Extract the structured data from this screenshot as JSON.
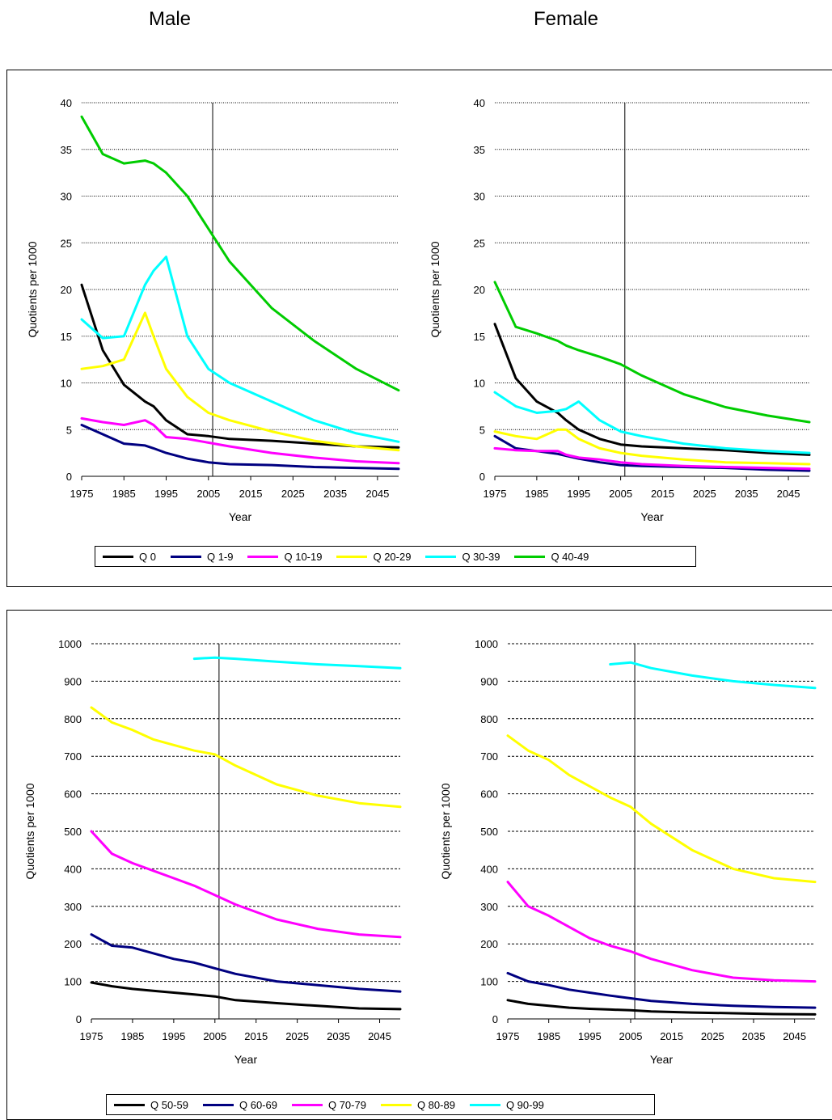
{
  "headings": {
    "male": "Male",
    "female": "Female"
  },
  "panels": [
    {
      "legend": [
        {
          "label": "Q 0",
          "color": "#000000"
        },
        {
          "label": "Q 1-9",
          "color": "#000080"
        },
        {
          "label": "Q 10-19",
          "color": "#ff00ff"
        },
        {
          "label": "Q 20-29",
          "color": "#ffff00"
        },
        {
          "label": "Q 30-39",
          "color": "#00ffff"
        },
        {
          "label": "Q 40-49",
          "color": "#00cc00"
        }
      ]
    },
    {
      "legend": [
        {
          "label": "Q 50-59",
          "color": "#000000"
        },
        {
          "label": "Q 60-69",
          "color": "#000080"
        },
        {
          "label": "Q 70-79",
          "color": "#ff00ff"
        },
        {
          "label": "Q 80-89",
          "color": "#ffff00"
        },
        {
          "label": "Q 90-99",
          "color": "#00ffff"
        }
      ]
    }
  ],
  "chart_data": [
    {
      "type": "line",
      "panel": "top",
      "sex": "Male",
      "xlabel": "Year",
      "ylabel": "Quotients per 1000",
      "xlim": [
        1975,
        2050
      ],
      "ylim": [
        0,
        40
      ],
      "xticks": [
        1975,
        1985,
        1995,
        2005,
        2015,
        2025,
        2035,
        2045
      ],
      "yticks": [
        0,
        5,
        10,
        15,
        20,
        25,
        30,
        35,
        40
      ],
      "vline": 2006,
      "grid": "horizontal dotted",
      "x": [
        1975,
        1980,
        1985,
        1990,
        1992,
        1995,
        2000,
        2005,
        2010,
        2020,
        2030,
        2040,
        2050
      ],
      "series": [
        {
          "name": "Q 0",
          "color": "#000000",
          "values": [
            20.5,
            13.5,
            9.8,
            8.0,
            7.5,
            6.0,
            4.5,
            4.3,
            4.0,
            3.8,
            3.5,
            3.2,
            3.1
          ]
        },
        {
          "name": "Q 1-9",
          "color": "#000080",
          "values": [
            5.5,
            4.5,
            3.5,
            3.3,
            3.0,
            2.5,
            1.9,
            1.5,
            1.3,
            1.2,
            1.0,
            0.9,
            0.8
          ]
        },
        {
          "name": "Q 10-19",
          "color": "#ff00ff",
          "values": [
            6.2,
            5.8,
            5.5,
            6.0,
            5.5,
            4.2,
            4.0,
            3.6,
            3.2,
            2.5,
            2.0,
            1.6,
            1.4
          ]
        },
        {
          "name": "Q 20-29",
          "color": "#ffff00",
          "values": [
            11.5,
            11.8,
            12.5,
            17.5,
            15.0,
            11.5,
            8.5,
            6.8,
            6.0,
            4.8,
            3.8,
            3.2,
            2.8
          ]
        },
        {
          "name": "Q 30-39",
          "color": "#00ffff",
          "values": [
            16.8,
            14.8,
            15.0,
            20.5,
            22.0,
            23.5,
            15.0,
            11.5,
            10.0,
            8.0,
            6.0,
            4.6,
            3.7
          ]
        },
        {
          "name": "Q 40-49",
          "color": "#00cc00",
          "values": [
            38.5,
            34.5,
            33.5,
            33.8,
            33.5,
            32.5,
            30.0,
            26.5,
            23.0,
            18.0,
            14.5,
            11.5,
            9.2
          ]
        }
      ]
    },
    {
      "type": "line",
      "panel": "top",
      "sex": "Female",
      "xlabel": "Year",
      "ylabel": "Quotients per 1000",
      "xlim": [
        1975,
        2050
      ],
      "ylim": [
        0,
        40
      ],
      "xticks": [
        1975,
        1985,
        1995,
        2005,
        2015,
        2025,
        2035,
        2045
      ],
      "yticks": [
        0,
        5,
        10,
        15,
        20,
        25,
        30,
        35,
        40
      ],
      "vline": 2006,
      "grid": "horizontal dotted",
      "x": [
        1975,
        1980,
        1985,
        1990,
        1992,
        1995,
        2000,
        2005,
        2010,
        2020,
        2030,
        2040,
        2050
      ],
      "series": [
        {
          "name": "Q 0",
          "color": "#000000",
          "values": [
            16.3,
            10.5,
            8.0,
            6.8,
            6.0,
            5.0,
            4.0,
            3.4,
            3.2,
            3.0,
            2.8,
            2.5,
            2.3
          ]
        },
        {
          "name": "Q 1-9",
          "color": "#000080",
          "values": [
            4.3,
            3.0,
            2.7,
            2.4,
            2.2,
            1.9,
            1.5,
            1.2,
            1.1,
            1.0,
            0.9,
            0.7,
            0.6
          ]
        },
        {
          "name": "Q 10-19",
          "color": "#ff00ff",
          "values": [
            3.0,
            2.8,
            2.7,
            2.7,
            2.3,
            2.0,
            1.8,
            1.5,
            1.3,
            1.1,
            1.0,
            0.9,
            0.8
          ]
        },
        {
          "name": "Q 20-29",
          "color": "#ffff00",
          "values": [
            4.8,
            4.3,
            4.0,
            5.0,
            5.0,
            4.0,
            3.0,
            2.5,
            2.2,
            1.8,
            1.5,
            1.4,
            1.3
          ]
        },
        {
          "name": "Q 30-39",
          "color": "#00ffff",
          "values": [
            9.0,
            7.5,
            6.8,
            7.0,
            7.2,
            8.0,
            6.0,
            4.8,
            4.3,
            3.5,
            3.0,
            2.7,
            2.5
          ]
        },
        {
          "name": "Q 40-49",
          "color": "#00cc00",
          "values": [
            20.8,
            16.0,
            15.3,
            14.5,
            14.0,
            13.5,
            12.8,
            12.0,
            10.8,
            8.8,
            7.4,
            6.5,
            5.8
          ]
        }
      ]
    },
    {
      "type": "line",
      "panel": "bottom",
      "sex": "Male",
      "xlabel": "Year",
      "ylabel": "Quotients per 1000",
      "xlim": [
        1975,
        2050
      ],
      "ylim": [
        0,
        1000
      ],
      "xticks": [
        1975,
        1985,
        1995,
        2005,
        2015,
        2025,
        2035,
        2045
      ],
      "yticks": [
        0,
        100,
        200,
        300,
        400,
        500,
        600,
        700,
        800,
        900,
        1000
      ],
      "vline": 2006,
      "grid": "horizontal dashed",
      "x": [
        1975,
        1980,
        1985,
        1990,
        1995,
        2000,
        2005,
        2010,
        2020,
        2030,
        2040,
        2050
      ],
      "series": [
        {
          "name": "Q 50-59",
          "color": "#000000",
          "values": [
            97,
            87,
            80,
            75,
            70,
            65,
            60,
            50,
            42,
            35,
            28,
            26
          ]
        },
        {
          "name": "Q 60-69",
          "color": "#000080",
          "values": [
            225,
            195,
            190,
            175,
            160,
            150,
            135,
            120,
            100,
            90,
            80,
            73
          ]
        },
        {
          "name": "Q 70-79",
          "color": "#ff00ff",
          "values": [
            500,
            440,
            415,
            395,
            375,
            355,
            330,
            305,
            265,
            240,
            225,
            218
          ]
        },
        {
          "name": "Q 80-89",
          "color": "#ffff00",
          "values": [
            830,
            790,
            770,
            745,
            730,
            715,
            705,
            675,
            625,
            595,
            575,
            565
          ]
        },
        {
          "name": "Q 90-99",
          "color": "#00ffff",
          "values": [
            null,
            null,
            null,
            null,
            null,
            960,
            963,
            960,
            952,
            945,
            940,
            935
          ]
        }
      ]
    },
    {
      "type": "line",
      "panel": "bottom",
      "sex": "Female",
      "xlabel": "Year",
      "ylabel": "Quotients per 1000",
      "xlim": [
        1975,
        2050
      ],
      "ylim": [
        0,
        1000
      ],
      "xticks": [
        1975,
        1985,
        1995,
        2005,
        2015,
        2025,
        2035,
        2045
      ],
      "yticks": [
        0,
        100,
        200,
        300,
        400,
        500,
        600,
        700,
        800,
        900,
        1000
      ],
      "vline": 2006,
      "grid": "horizontal dashed",
      "x": [
        1975,
        1980,
        1985,
        1990,
        1995,
        2000,
        2005,
        2010,
        2020,
        2030,
        2040,
        2050
      ],
      "series": [
        {
          "name": "Q 50-59",
          "color": "#000000",
          "values": [
            50,
            40,
            35,
            30,
            27,
            25,
            23,
            20,
            17,
            15,
            13,
            12
          ]
        },
        {
          "name": "Q 60-69",
          "color": "#000080",
          "values": [
            122,
            100,
            90,
            78,
            70,
            62,
            55,
            48,
            40,
            35,
            32,
            30
          ]
        },
        {
          "name": "Q 70-79",
          "color": "#ff00ff",
          "values": [
            365,
            300,
            275,
            245,
            215,
            195,
            180,
            160,
            130,
            110,
            103,
            100
          ]
        },
        {
          "name": "Q 80-89",
          "color": "#ffff00",
          "values": [
            755,
            715,
            690,
            650,
            620,
            590,
            565,
            520,
            450,
            400,
            375,
            365
          ]
        },
        {
          "name": "Q 90-99",
          "color": "#00ffff",
          "values": [
            null,
            null,
            null,
            null,
            null,
            945,
            950,
            935,
            915,
            900,
            890,
            882
          ]
        }
      ]
    }
  ]
}
